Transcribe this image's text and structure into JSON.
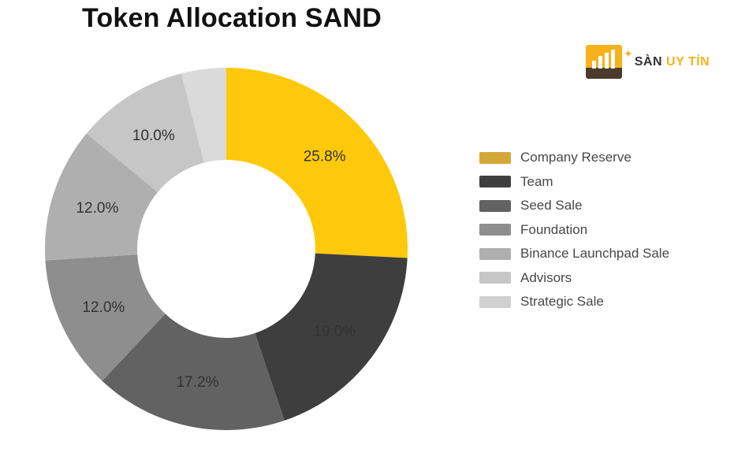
{
  "chart_data": {
    "type": "pie",
    "variant": "donut",
    "title": "Token Allocation SAND",
    "categories": [
      "Company Reserve",
      "Team",
      "Seed Sale",
      "Foundation",
      "Binance Launchpad Sale",
      "Advisors",
      "Strategic Sale"
    ],
    "values": [
      25.8,
      19.0,
      17.2,
      12.0,
      12.0,
      10.0,
      4.0
    ],
    "data_labels": [
      "25.8%",
      "19.0%",
      "17.2%",
      "12.0%",
      "12.0%",
      "10.0%",
      ""
    ],
    "colors": [
      "#FFC90B",
      "#3E3E3E",
      "#626262",
      "#8E8E8E",
      "#AFAFAF",
      "#C6C6C6",
      "#DADADA"
    ],
    "legend_colors": [
      "#D4A838",
      "#3E3E3E",
      "#626262",
      "#8E8E8E",
      "#AFAFAF",
      "#C6C6C6",
      "#D0D0D0"
    ],
    "legend": "right"
  },
  "logo": {
    "text_a": "SÀN",
    "text_b": "UY TÍN"
  }
}
